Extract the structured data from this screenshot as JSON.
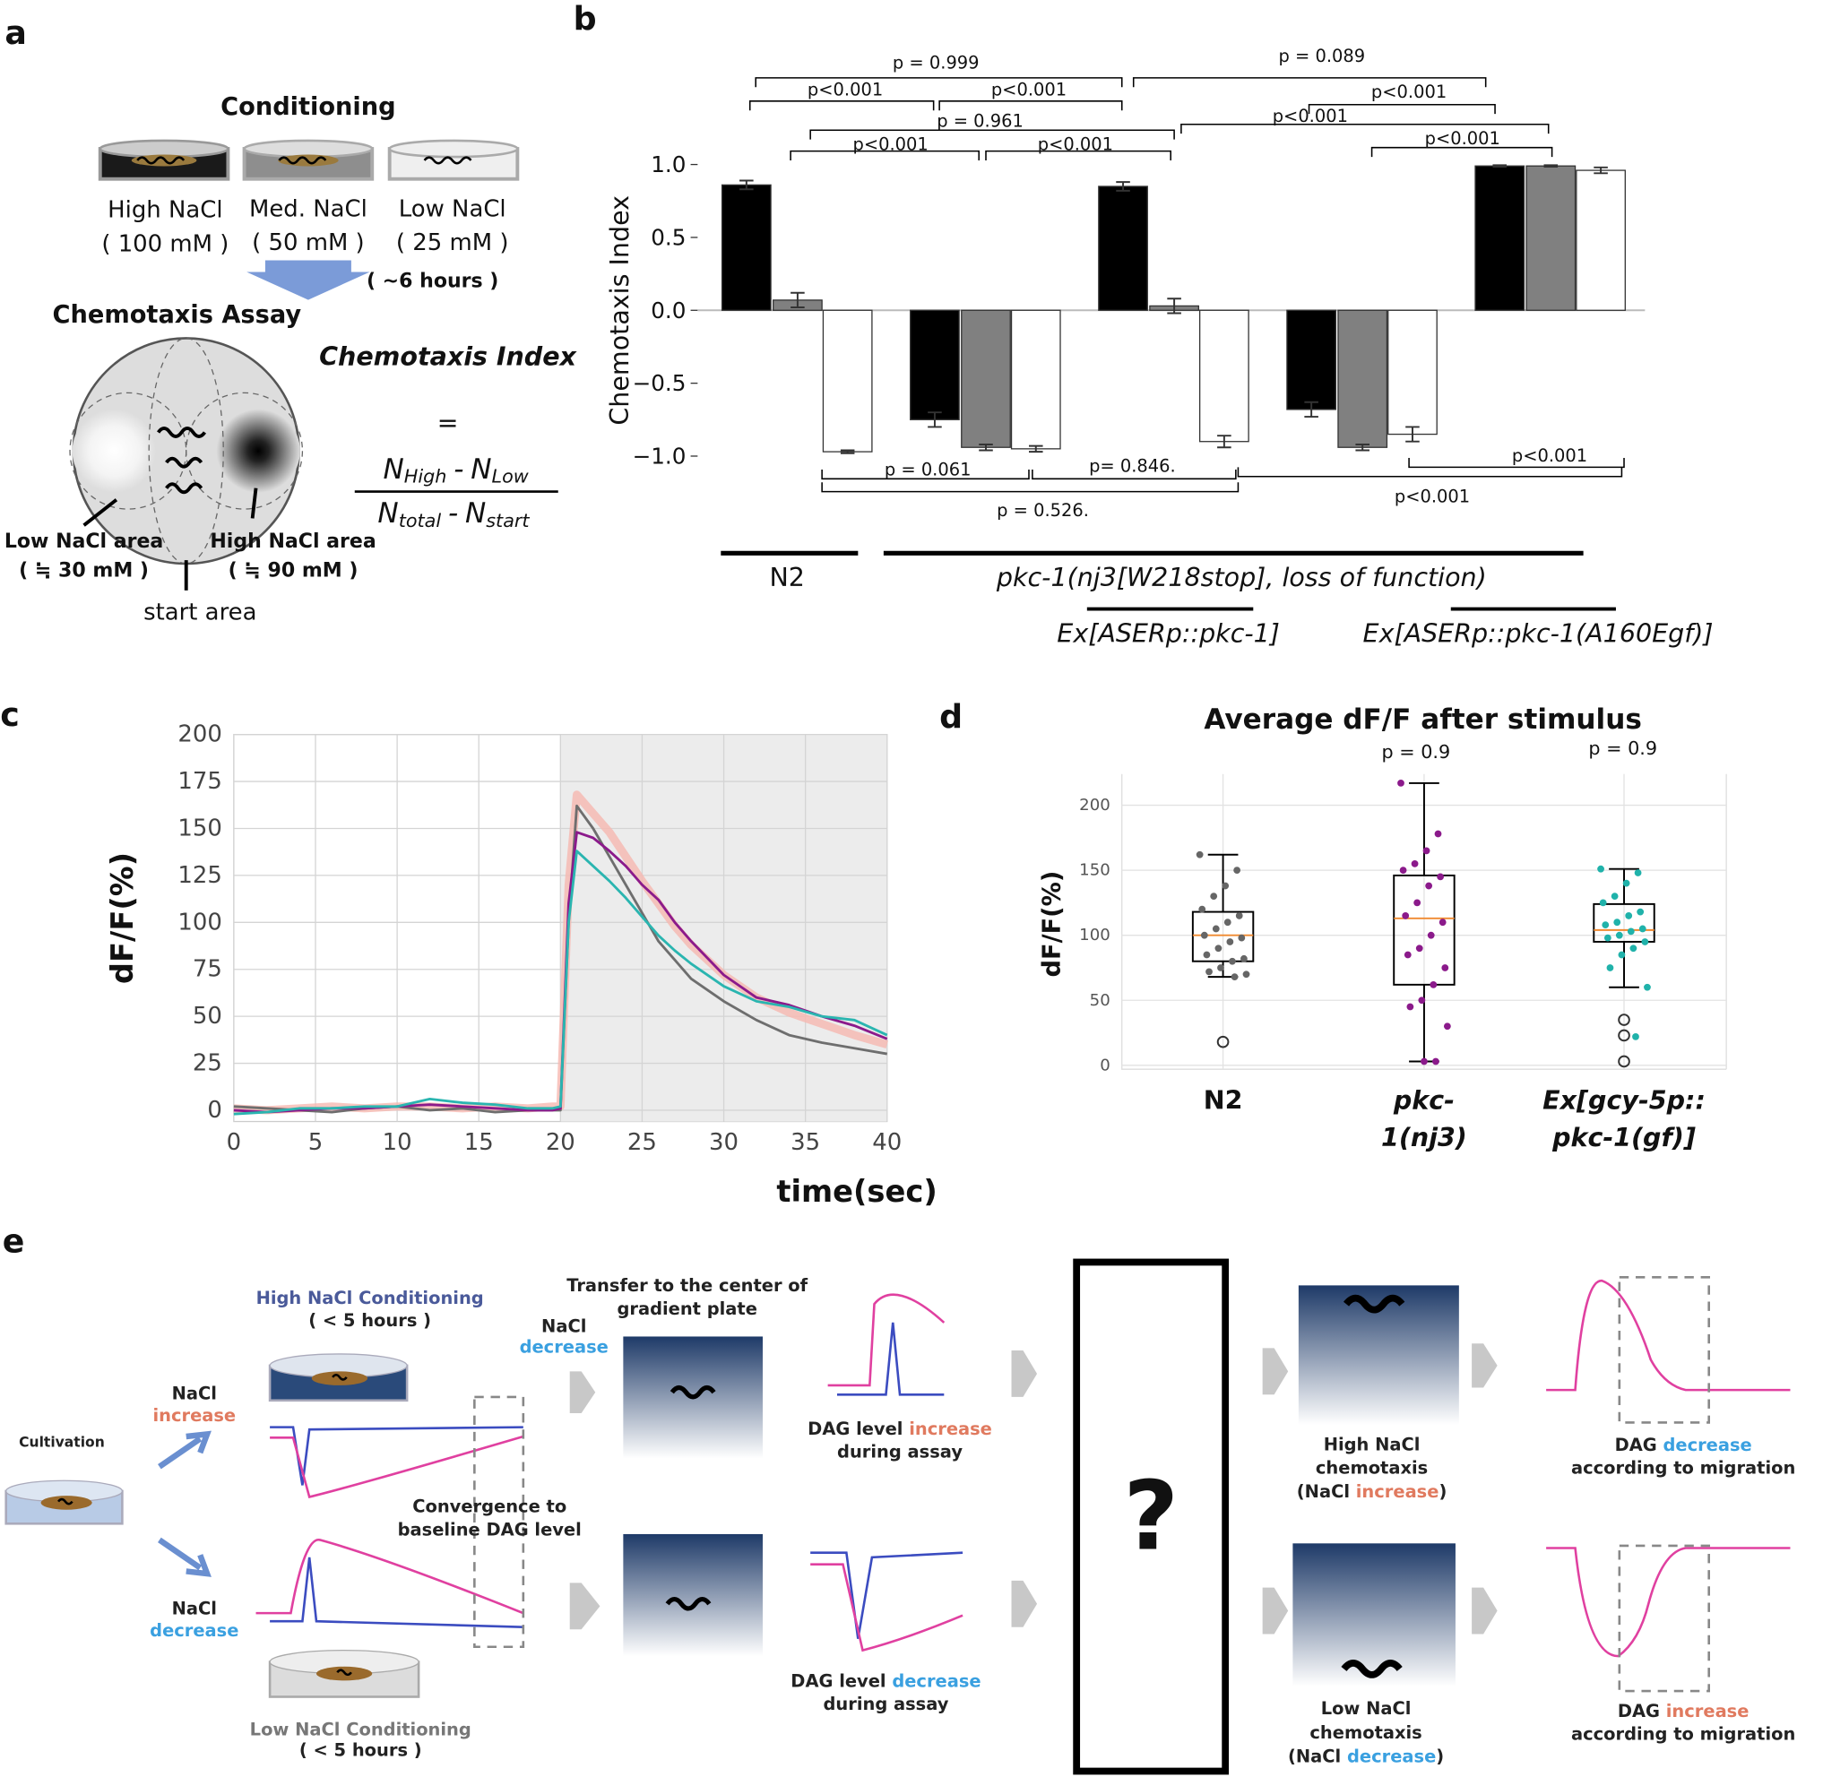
{
  "panel_labels": [
    "a",
    "b",
    "c",
    "d",
    "e"
  ],
  "panel_a": {
    "conditioning": "Conditioning",
    "dishes": [
      {
        "name": "High NaCl",
        "conc": "( 100 mM )"
      },
      {
        "name": "Med. NaCl",
        "conc": "( 50 mM )"
      },
      {
        "name": "Low NaCl",
        "conc": "( 25 mM )"
      }
    ],
    "duration": "( ~6 hours )",
    "assay": "Chemotaxis Assay",
    "areas": [
      {
        "name": "Low NaCl area",
        "conc": "( ≒ 30 mM )"
      },
      {
        "name": "High NaCl area",
        "conc": "( ≒ 90 mM )"
      },
      {
        "name": "start area"
      }
    ],
    "formula": {
      "title": "Chemotaxis Index",
      "equals": "=",
      "minus": "-",
      "numerator": [
        {
          "main": "N",
          "sub": "High"
        },
        {
          "main": "N",
          "sub": "Low"
        }
      ],
      "denominator": [
        {
          "main": "N",
          "sub": "total"
        },
        {
          "main": "N",
          "sub": "start"
        }
      ]
    }
  },
  "chart_data": [
    {
      "type": "bar",
      "y_label": "Chemotaxis Index",
      "ylim": [
        -1.1,
        1.1
      ],
      "yticks": [
        {
          "value": 1,
          "label": "1.0"
        },
        {
          "value": 0.5,
          "label": "0.5"
        },
        {
          "value": 0,
          "label": "0.0"
        },
        {
          "value": -0.5,
          "label": "−0.5"
        },
        {
          "value": -1,
          "label": "−1.0"
        }
      ],
      "series": [
        {
          "color": "#000000",
          "values": [
            0.86,
            -0.75,
            0.85,
            -0.68,
            0.99
          ],
          "errors": [
            0.03,
            0.05,
            0.03,
            0.05,
            0.005
          ]
        },
        {
          "color": "#808080",
          "values": [
            0.07,
            -0.94,
            0.03,
            -0.94,
            0.99
          ],
          "errors": [
            0.05,
            0.02,
            0.05,
            0.02,
            0.005
          ]
        },
        {
          "color": "#ffffff",
          "values": [
            -0.97,
            -0.95,
            -0.9,
            -0.85,
            0.96
          ],
          "errors": [
            0.01,
            0.02,
            0.04,
            0.05,
            0.02
          ]
        }
      ],
      "comparisons": [
        "p = 0.999",
        "p<0.001",
        "p<0.001",
        "p = 0.961",
        "p<0.001",
        "p<0.001",
        "p = 0.089",
        "p<0.001",
        "p<0.001",
        "p<0.001",
        "p = 0.061",
        "p= 0.846.",
        "p = 0.526.",
        "p<0.001",
        "p<0.001"
      ],
      "group_labels": [
        "N2",
        "pkc-1(nj3[W218stop], loss of function)",
        "Ex[ASERp::pkc-1]",
        "Ex[ASERp::pkc-1(A160Egf)]"
      ]
    },
    {
      "type": "line",
      "y_label": "dF/F(%)",
      "x_label": "time(sec)",
      "xlim": [
        0,
        40
      ],
      "ylim": [
        -6,
        200
      ],
      "xticks": [
        0,
        5,
        10,
        15,
        20,
        25,
        30,
        35,
        40
      ],
      "yticks": [
        0,
        25,
        50,
        75,
        100,
        125,
        150,
        175,
        200
      ],
      "grid": true,
      "highlight": [
        20,
        40
      ],
      "x": [
        0,
        2,
        4,
        6,
        8,
        10,
        12,
        14,
        16,
        18,
        19.5,
        20,
        20.5,
        21,
        22,
        23,
        24,
        25,
        26,
        27,
        28,
        30,
        32,
        34,
        36,
        38,
        40
      ],
      "series": [
        {
          "color": "#f6b8b0",
          "style": "band",
          "values": [
            1,
            0,
            1,
            2,
            1,
            2,
            2,
            1,
            2,
            1,
            2,
            2,
            120,
            168,
            158,
            148,
            135,
            122,
            110,
            98,
            88,
            72,
            60,
            52,
            46,
            40,
            35
          ]
        },
        {
          "color": "#6e6e6e",
          "values": [
            2,
            1,
            0,
            -1,
            1,
            2,
            0,
            1,
            -1,
            0,
            0,
            0,
            100,
            162,
            150,
            135,
            120,
            105,
            90,
            80,
            70,
            58,
            48,
            40,
            36,
            33,
            30
          ]
        },
        {
          "color": "#8b1a8b",
          "values": [
            0,
            -1,
            0,
            1,
            1,
            2,
            3,
            2,
            1,
            0,
            0,
            1,
            110,
            148,
            145,
            138,
            130,
            120,
            112,
            100,
            90,
            72,
            60,
            56,
            50,
            45,
            38
          ]
        },
        {
          "color": "#2ab5b0",
          "values": [
            -2,
            -1,
            1,
            1,
            2,
            2,
            6,
            4,
            3,
            1,
            1,
            2,
            100,
            138,
            130,
            122,
            113,
            103,
            93,
            85,
            78,
            66,
            58,
            55,
            50,
            48,
            40
          ]
        }
      ]
    },
    {
      "type": "box",
      "title": "Average dF/F after stimulus",
      "y_label": "dF/F(%)",
      "ylim": [
        -3,
        224
      ],
      "yticks": [
        0,
        50,
        100,
        150,
        200
      ],
      "grid": true,
      "categories": [
        [
          "N2"
        ],
        [
          "pkc-",
          "1(nj3)"
        ],
        [
          "Ex[gcy-5p::",
          "pkc-1(gf)]"
        ]
      ],
      "annotations": [
        "p = 0.9",
        "p = 0.9"
      ],
      "boxes": [
        {
          "color": "#666666",
          "whisker_low": 68,
          "q1": 80,
          "median": 100,
          "q3": 118,
          "whisker_high": 162,
          "outliers": [
            18
          ],
          "points": [
            162,
            150,
            138,
            130,
            120,
            115,
            110,
            105,
            100,
            98,
            95,
            90,
            85,
            82,
            80,
            75,
            72,
            70,
            68
          ]
        },
        {
          "color": "#8b1a8b",
          "whisker_low": 3,
          "q1": 62,
          "median": 113,
          "q3": 146,
          "whisker_high": 217,
          "outliers": [],
          "points": [
            217,
            178,
            165,
            155,
            150,
            145,
            138,
            125,
            115,
            110,
            100,
            90,
            85,
            75,
            62,
            50,
            45,
            30,
            3,
            3
          ]
        },
        {
          "color": "#20b2aa",
          "whisker_low": 60,
          "q1": 95,
          "median": 104,
          "q3": 124,
          "whisker_high": 151,
          "outliers": [
            35,
            23,
            3
          ],
          "points": [
            151,
            148,
            140,
            130,
            125,
            118,
            115,
            110,
            108,
            105,
            103,
            100,
            98,
            95,
            90,
            85,
            75,
            60,
            22
          ]
        }
      ]
    }
  ],
  "panel_e": {
    "cultivation": "Cultivation",
    "nacl_increase": [
      "NaCl",
      "increase"
    ],
    "nacl_decrease": [
      "NaCl",
      "decrease"
    ],
    "high_conditioning": [
      "High NaCl Conditioning",
      "( < 5 hours )"
    ],
    "low_conditioning": [
      "Low NaCl Conditioning",
      "( < 5 hours )"
    ],
    "convergence": [
      "Convergence to",
      "baseline DAG level"
    ],
    "transfer": [
      "Transfer to the center of",
      "gradient plate"
    ],
    "transfer_nacl": [
      "NaCl",
      "decrease"
    ],
    "dag_assay_increase": [
      "DAG level ",
      "increase",
      "during assay"
    ],
    "dag_assay_decrease": [
      "DAG level ",
      "decrease",
      "during assay"
    ],
    "question": "?",
    "high_chemotaxis": [
      "High NaCl",
      "chemotaxis",
      "(NaCl ",
      "increase",
      ")"
    ],
    "low_chemotaxis": [
      "Low NaCl",
      "chemotaxis",
      "(NaCl ",
      "decrease",
      ")"
    ],
    "dag_migration_decrease": [
      "DAG ",
      "decrease",
      "according to migration"
    ],
    "dag_migration_increase": [
      "DAG ",
      "increase",
      "according to migration"
    ]
  }
}
